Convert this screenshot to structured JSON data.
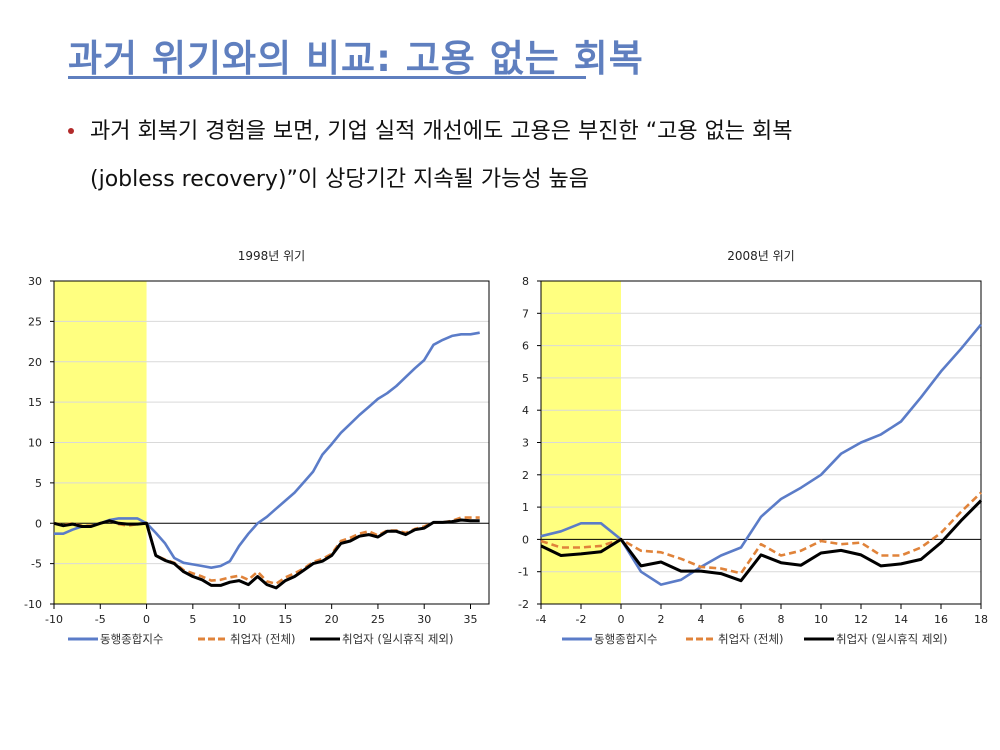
{
  "slide": {
    "title": "과거 위기와의 비교: 고용 없는 회복",
    "bullet_line1": "과거 회복기 경험을 보면, 기업 실적 개선에도 고용은 부진한 “고용 없는 회복",
    "bullet_line2": "(jobless recovery)”이 상당기간 지속될 가능성 높음",
    "colors": {
      "title": "#5f7fbf",
      "bullet": "#b22a2a",
      "highlight": "#ffff80"
    }
  },
  "chart_data": [
    {
      "type": "line",
      "title": "1998년 위기",
      "xlabel": "",
      "ylabel": "",
      "xlim": [
        -10,
        37
      ],
      "ylim": [
        -10,
        30
      ],
      "x_ticks": [
        -10,
        -5,
        0,
        5,
        10,
        15,
        20,
        25,
        30,
        35
      ],
      "y_ticks": [
        -10,
        -5,
        0,
        5,
        10,
        15,
        20,
        25,
        30
      ],
      "grid": true,
      "highlight_range": [
        -10,
        0
      ],
      "legend_position": "bottom",
      "x": [
        -10,
        -9,
        -8,
        -7,
        -6,
        -5,
        -4,
        -3,
        -2,
        -1,
        0,
        1,
        2,
        3,
        4,
        5,
        6,
        7,
        8,
        9,
        10,
        11,
        12,
        13,
        14,
        15,
        16,
        17,
        18,
        19,
        20,
        21,
        22,
        23,
        24,
        25,
        26,
        27,
        28,
        29,
        30,
        31,
        32,
        33,
        34,
        35,
        36
      ],
      "series": [
        {
          "name": "동행종합지수",
          "color": "#5b7cc8",
          "style": "solid",
          "values": [
            -1.3,
            -1.3,
            -0.8,
            -0.4,
            -0.3,
            0,
            0.4,
            0.6,
            0.6,
            0.6,
            0,
            -1.2,
            -2.5,
            -4.3,
            -4.9,
            -5.1,
            -5.3,
            -5.5,
            -5.3,
            -4.7,
            -2.8,
            -1.3,
            0,
            0.8,
            1.8,
            2.8,
            3.8,
            5.1,
            6.4,
            8.5,
            9.8,
            11.2,
            12.3,
            13.4,
            14.4,
            15.4,
            16.1,
            17.0,
            18.1,
            19.2,
            20.2,
            22.1,
            22.7,
            23.2,
            23.4,
            23.4,
            23.6
          ]
        },
        {
          "name": "취업자 (전체)",
          "color": "#e0833a",
          "style": "dashed",
          "values": [
            0,
            -0.2,
            0,
            -0.3,
            -0.3,
            0,
            0.3,
            -0.1,
            -0.3,
            -0.1,
            0,
            -4.0,
            -4.5,
            -4.9,
            -5.8,
            -6.2,
            -6.6,
            -7.1,
            -7.0,
            -6.7,
            -6.5,
            -7.0,
            -6.0,
            -7.2,
            -7.5,
            -6.7,
            -6.2,
            -5.6,
            -4.8,
            -4.4,
            -3.8,
            -2.2,
            -1.8,
            -1.3,
            -1.0,
            -1.5,
            -0.9,
            -0.9,
            -1.2,
            -0.7,
            -0.4,
            0.1,
            0.1,
            0.3,
            0.7,
            0.7,
            0.7
          ]
        },
        {
          "name": "취업자 (일시휴직 제외)",
          "color": "#000000",
          "style": "solid",
          "values": [
            0,
            -0.3,
            -0.1,
            -0.4,
            -0.4,
            0,
            0.3,
            0,
            -0.1,
            -0.1,
            0,
            -4.0,
            -4.6,
            -5.0,
            -6.0,
            -6.6,
            -7.0,
            -7.7,
            -7.7,
            -7.3,
            -7.1,
            -7.6,
            -6.6,
            -7.6,
            -8.0,
            -7.1,
            -6.6,
            -5.8,
            -5.0,
            -4.7,
            -4.0,
            -2.5,
            -2.2,
            -1.6,
            -1.4,
            -1.7,
            -1.0,
            -1.0,
            -1.4,
            -0.8,
            -0.6,
            0.1,
            0.1,
            0.2,
            0.4,
            0.3,
            0.3
          ]
        }
      ]
    },
    {
      "type": "line",
      "title": "2008년 위기",
      "xlabel": "",
      "ylabel": "",
      "xlim": [
        -4,
        18
      ],
      "ylim": [
        -2,
        8
      ],
      "x_ticks": [
        -4,
        -2,
        0,
        2,
        4,
        6,
        8,
        10,
        12,
        14,
        16,
        18
      ],
      "y_ticks": [
        -2,
        -1,
        0,
        1,
        2,
        3,
        4,
        5,
        6,
        7,
        8
      ],
      "grid": true,
      "highlight_range": [
        -4,
        0
      ],
      "legend_position": "bottom",
      "x": [
        -4,
        -3,
        -2,
        -1,
        0,
        1,
        2,
        3,
        4,
        5,
        6,
        7,
        8,
        9,
        10,
        11,
        12,
        13,
        14,
        15,
        16,
        17,
        18
      ],
      "series": [
        {
          "name": "동행종합지수",
          "color": "#5b7cc8",
          "style": "solid",
          "values": [
            0.1,
            0.25,
            0.5,
            0.5,
            0,
            -1.0,
            -1.4,
            -1.25,
            -0.85,
            -0.5,
            -0.25,
            0.7,
            1.25,
            1.6,
            2.0,
            2.65,
            3.0,
            3.25,
            3.65,
            4.4,
            5.2,
            5.9,
            6.65
          ]
        },
        {
          "name": "취업자 (전체)",
          "color": "#e0833a",
          "style": "dashed",
          "values": [
            -0.05,
            -0.25,
            -0.25,
            -0.2,
            0,
            -0.35,
            -0.4,
            -0.6,
            -0.85,
            -0.9,
            -1.05,
            -0.15,
            -0.5,
            -0.35,
            -0.05,
            -0.15,
            -0.1,
            -0.5,
            -0.5,
            -0.25,
            0.2,
            0.85,
            1.45
          ]
        },
        {
          "name": "취업자 (일시휴직 제외)",
          "color": "#000000",
          "style": "solid",
          "values": [
            -0.2,
            -0.5,
            -0.45,
            -0.38,
            0,
            -0.82,
            -0.7,
            -0.98,
            -0.98,
            -1.06,
            -1.28,
            -0.48,
            -0.72,
            -0.8,
            -0.42,
            -0.34,
            -0.48,
            -0.82,
            -0.76,
            -0.62,
            -0.1,
            0.58,
            1.2
          ]
        }
      ]
    }
  ]
}
